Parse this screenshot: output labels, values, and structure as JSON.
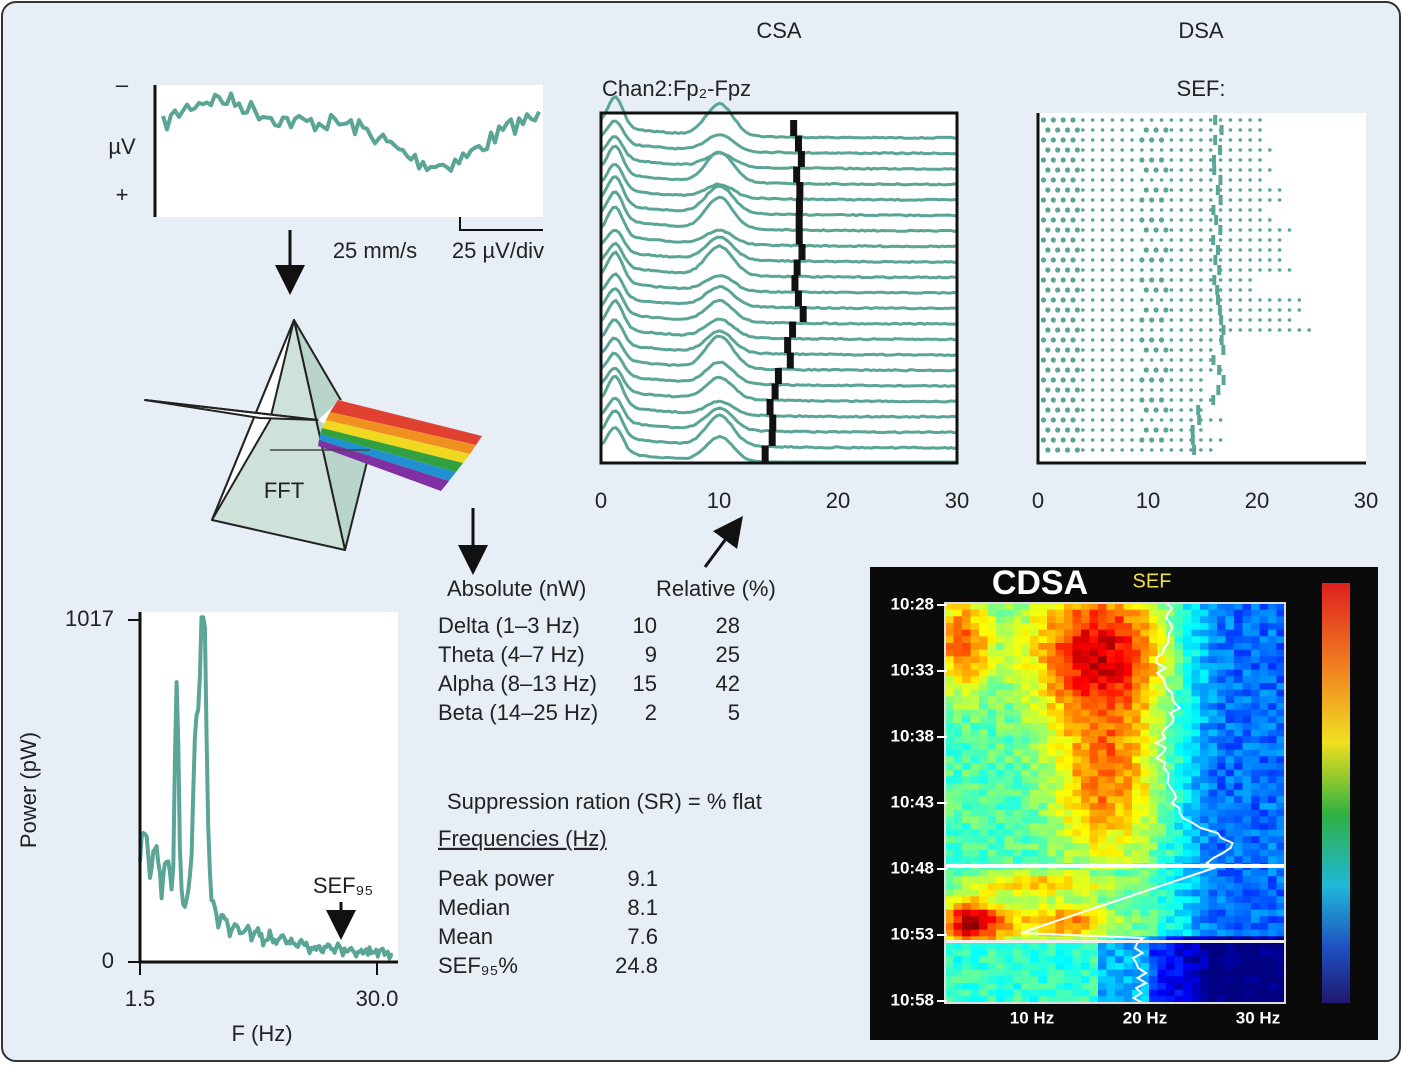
{
  "eeg": {
    "minus": "–",
    "unit": "µV",
    "plus": "+",
    "speed": "25 mm/s",
    "scale": "25 µV/div"
  },
  "prism": {
    "label": "FFT"
  },
  "csa": {
    "title": "CSA",
    "channel": "Chan2:Fp₂-Fpz",
    "xticks": [
      "0",
      "10",
      "20",
      "30"
    ]
  },
  "dsa": {
    "title": "DSA",
    "sef": "SEF:",
    "xticks": [
      "0",
      "10",
      "20",
      "30"
    ]
  },
  "spectrum": {
    "ylabel": "Power (pW)",
    "xlabel": "F (Hz)",
    "yticks": [
      "1017",
      "0"
    ],
    "xticks": [
      "1.5",
      "30.0"
    ],
    "sef": "SEF₉₅"
  },
  "bands": {
    "headers": [
      "Absolute (nW)",
      "Relative (%)"
    ],
    "rows": [
      [
        "Delta (1–3 Hz)",
        "10",
        "28"
      ],
      [
        "Theta (4–7 Hz)",
        "9",
        "25"
      ],
      [
        "Alpha (8–13 Hz)",
        "15",
        "42"
      ],
      [
        "Beta (14–25 Hz)",
        "2",
        "5"
      ]
    ]
  },
  "suppression": "Suppression ration (SR) = % flat",
  "frequencies": {
    "heading": "Frequencies (Hz)",
    "rows": [
      [
        "Peak power",
        "9.1"
      ],
      [
        "Median",
        "8.1"
      ],
      [
        "Mean",
        "7.6"
      ],
      [
        "SEF₉₅%",
        "24.8"
      ]
    ]
  },
  "cdsa": {
    "title": "CDSA",
    "sef": "SEF",
    "times": [
      "10:28",
      "10:33",
      "10:38",
      "10:43",
      "10:48",
      "10:53",
      "10:58"
    ],
    "freqs": [
      "10 Hz",
      "20 Hz",
      "30 Hz"
    ]
  }
}
